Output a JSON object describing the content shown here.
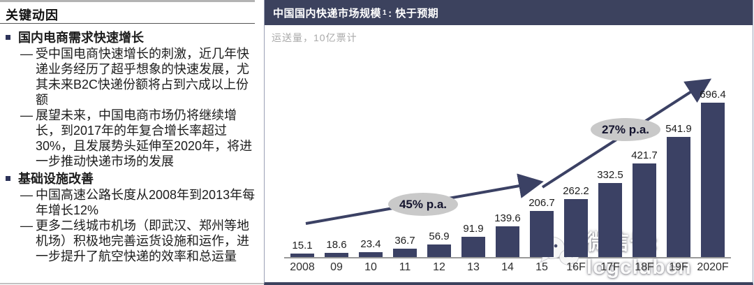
{
  "left_panel": {
    "title": "关键动因",
    "bullets": [
      {
        "level": 1,
        "marker": "",
        "text": "国内电商需求快速增长"
      },
      {
        "level": 2,
        "marker": "—",
        "text": "受中国电商快速增长的刺激，近几年快递业务经历了超乎想象的快速发展，尤其未来B2C快递份额将占到六成以上份额"
      },
      {
        "level": 2,
        "marker": "—",
        "text": "展望未来，中国电商市场仍将继续增长，到2017年的年复合增长率超过30%，且发展势头延伸至2020年，将进一步推动快递市场的发展"
      },
      {
        "level": 1,
        "marker": "",
        "text": "基础设施改善"
      },
      {
        "level": 2,
        "marker": "—",
        "text": "中国高速公路长度从2008年到2013年每年增长12%"
      },
      {
        "level": 2,
        "marker": "—",
        "text": "更多二线城市机场（即武汉、郑州等地机场）积极地完善运货设施和运作，进一步提升了航空快递的效率和总运量"
      }
    ]
  },
  "chart_panel": {
    "header": {
      "title": "中国国内快递市场规模",
      "superscript": "1",
      "suffix": ": 快于预期"
    },
    "subtitle": "运送量，10亿票计",
    "watermark": {
      "icon": "wechat-icon",
      "text": "微信号: logclubcn"
    }
  },
  "chart_data": {
    "type": "bar",
    "title": "中国国内快递市场规模¹: 快于预期",
    "subtitle": "运送量，10亿票计",
    "categories": [
      "2008",
      "09",
      "10",
      "11",
      "12",
      "13",
      "14",
      "15",
      "16F",
      "17F",
      "18F",
      "19F",
      "2020F"
    ],
    "values": [
      15.1,
      18.6,
      23.4,
      36.7,
      56.9,
      91.9,
      139.6,
      206.7,
      262.2,
      332.5,
      421.7,
      541.9,
      696.4
    ],
    "ylim": [
      0,
      700
    ],
    "grid": false,
    "legend": "none",
    "bar_color": "#3b4164",
    "annotations": [
      {
        "label": "45% p.a.",
        "applies_to": "2008-15"
      },
      {
        "label": "27% p.a.",
        "applies_to": "15-2020F"
      }
    ]
  },
  "colors": {
    "header_bg": "#3c425e",
    "bar": "#3b4164",
    "arrow": "#3b4164",
    "annotation_bg": "#c9c9c9",
    "subtitle_gray": "#a9a9a9",
    "baseline_gray": "#999999"
  }
}
